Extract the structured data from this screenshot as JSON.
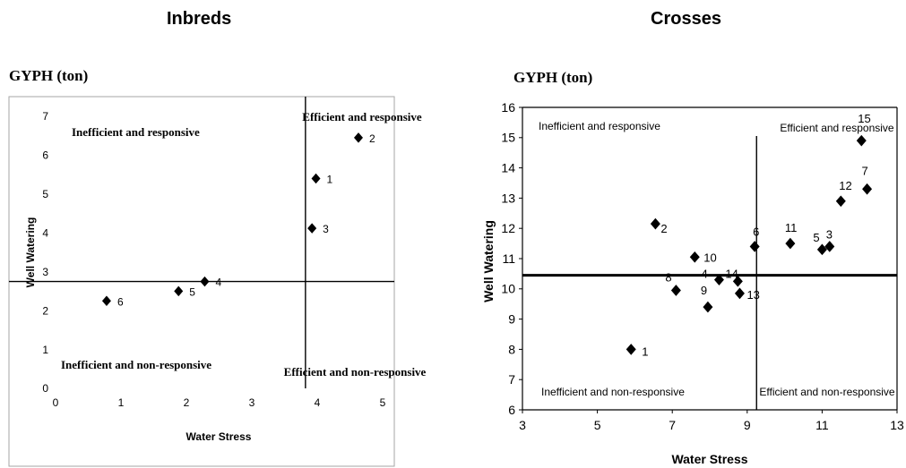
{
  "panel_titles": [
    "Inbreds",
    "Crosses"
  ],
  "chart_data": [
    {
      "type": "scatter",
      "title": "Inbreds",
      "ylabel_top": "GYPH (ton)",
      "ylabel": "Well Watering",
      "xlabel": "Water Stress",
      "xlim": [
        0,
        5
      ],
      "ylim": [
        0,
        7
      ],
      "xticks": [
        0,
        1,
        2,
        3,
        4,
        5
      ],
      "yticks": [
        0,
        1,
        2,
        3,
        4,
        5,
        6,
        7
      ],
      "divider_x": 3.82,
      "divider_y": 2.75,
      "quadrant_labels": {
        "top_left": "Inefficient and responsive",
        "top_right": "Efficient and responsive",
        "bottom_left": "Inefficient and non-responsive",
        "bottom_right": "Efficient and non-responsive"
      },
      "points": [
        {
          "label": "1",
          "x": 3.98,
          "y": 5.4
        },
        {
          "label": "2",
          "x": 4.63,
          "y": 6.45
        },
        {
          "label": "3",
          "x": 3.92,
          "y": 4.12
        },
        {
          "label": "4",
          "x": 2.28,
          "y": 2.75
        },
        {
          "label": "5",
          "x": 1.88,
          "y": 2.5
        },
        {
          "label": "6",
          "x": 0.78,
          "y": 2.25
        }
      ]
    },
    {
      "type": "scatter",
      "title": "Crosses",
      "ylabel_top": "GYPH (ton)",
      "ylabel": "Well Watering",
      "xlabel": "Water Stress",
      "xlim": [
        3,
        13
      ],
      "ylim": [
        6,
        16
      ],
      "xticks": [
        3,
        5,
        7,
        9,
        11,
        13
      ],
      "yticks": [
        6,
        7,
        8,
        9,
        10,
        11,
        12,
        13,
        14,
        15,
        16
      ],
      "divider_x": 9.25,
      "divider_y": 10.45,
      "quadrant_labels": {
        "top_left": "Inefficient and responsive",
        "top_right": "Efficient and responsive",
        "bottom_left": "Inefficient and non-responsive",
        "bottom_right": "Efficient and non-responsive"
      },
      "points": [
        {
          "label": "1",
          "x": 5.9,
          "y": 8.0
        },
        {
          "label": "2",
          "x": 6.55,
          "y": 12.15
        },
        {
          "label": "3",
          "x": 11.2,
          "y": 11.4
        },
        {
          "label": "4",
          "x": 8.25,
          "y": 10.3
        },
        {
          "label": "5",
          "x": 11.0,
          "y": 11.3
        },
        {
          "label": "6",
          "x": 9.2,
          "y": 11.4
        },
        {
          "label": "7",
          "x": 12.2,
          "y": 13.3
        },
        {
          "label": "8",
          "x": 7.1,
          "y": 9.95
        },
        {
          "label": "9",
          "x": 7.95,
          "y": 9.4
        },
        {
          "label": "10",
          "x": 7.6,
          "y": 11.05
        },
        {
          "label": "11",
          "x": 10.15,
          "y": 11.5
        },
        {
          "label": "12",
          "x": 11.5,
          "y": 12.9
        },
        {
          "label": "13",
          "x": 8.8,
          "y": 9.85
        },
        {
          "label": "14",
          "x": 8.75,
          "y": 10.25
        },
        {
          "label": "15",
          "x": 12.05,
          "y": 14.9
        }
      ]
    }
  ]
}
